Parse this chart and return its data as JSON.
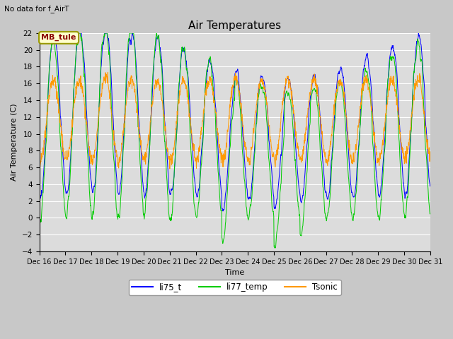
{
  "title": "Air Temperatures",
  "top_left_text": "No data for f_AirT",
  "annotation_box": "MB_tule",
  "ylabel": "Air Temperature (C)",
  "xlabel": "Time",
  "ylim": [
    -4,
    22
  ],
  "yticks": [
    -4,
    -2,
    0,
    2,
    4,
    6,
    8,
    10,
    12,
    14,
    16,
    18,
    20,
    22
  ],
  "xtick_labels": [
    "Dec 16",
    "Dec 17",
    "Dec 18",
    "Dec 19",
    "Dec 20",
    "Dec 21",
    "Dec 22",
    "Dec 23",
    "Dec 24",
    "Dec 25",
    "Dec 26",
    "Dec 27",
    "Dec 28",
    "Dec 29",
    "Dec 30",
    "Dec 31"
  ],
  "line_colors": {
    "li75_t": "#0000ff",
    "li77_temp": "#00cc00",
    "Tsonic": "#ff9900"
  },
  "fig_bg": "#c8c8c8",
  "plot_bg": "#dcdcdc",
  "grid_color": "#ffffff",
  "days": 15
}
